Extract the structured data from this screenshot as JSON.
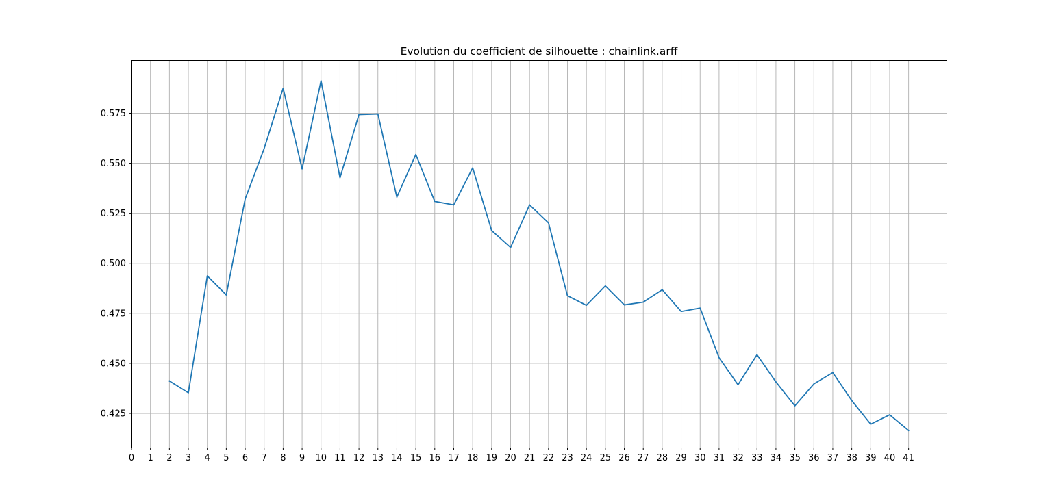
{
  "chart_data": {
    "type": "line",
    "title": "Evolution du coefficient de silhouette : chainlink.arff",
    "xlabel": "",
    "ylabel": "",
    "x_ticks": [
      0,
      1,
      2,
      3,
      4,
      5,
      6,
      7,
      8,
      9,
      10,
      11,
      12,
      13,
      14,
      15,
      16,
      17,
      18,
      19,
      20,
      21,
      22,
      23,
      24,
      25,
      26,
      27,
      28,
      29,
      30,
      31,
      32,
      33,
      34,
      35,
      36,
      37,
      38,
      39,
      40,
      41
    ],
    "y_ticks": [
      "0.425",
      "0.450",
      "0.475",
      "0.500",
      "0.525",
      "0.550",
      "0.575"
    ],
    "xlim": [
      0,
      43
    ],
    "ylim": [
      0.4079,
      0.6015
    ],
    "grid": true,
    "series_color": "#1f77b4",
    "x": [
      2,
      3,
      4,
      5,
      6,
      7,
      8,
      9,
      10,
      11,
      12,
      13,
      14,
      15,
      16,
      17,
      18,
      19,
      20,
      21,
      22,
      23,
      24,
      25,
      26,
      27,
      28,
      29,
      30,
      31,
      32,
      33,
      34,
      35,
      36,
      37,
      38,
      39,
      40,
      41
    ],
    "values": [
      0.4412,
      0.4353,
      0.4937,
      0.4842,
      0.5322,
      0.5574,
      0.5875,
      0.5472,
      0.5912,
      0.5428,
      0.5743,
      0.5746,
      0.5331,
      0.5544,
      0.5309,
      0.5292,
      0.5477,
      0.5164,
      0.5079,
      0.5292,
      0.5202,
      0.4838,
      0.479,
      0.4887,
      0.4792,
      0.4806,
      0.4868,
      0.4759,
      0.4776,
      0.4528,
      0.4393,
      0.4543,
      0.4407,
      0.4288,
      0.4397,
      0.4454,
      0.4314,
      0.4196,
      0.4243,
      0.4164
    ]
  }
}
